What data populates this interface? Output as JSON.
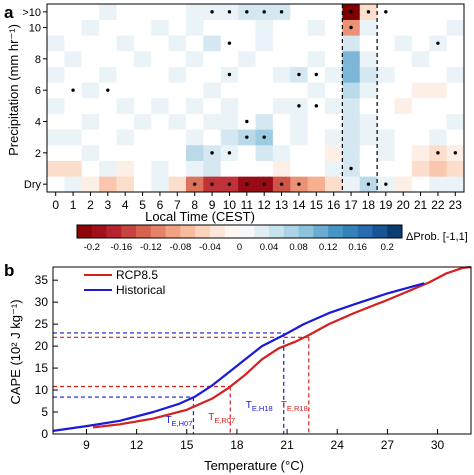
{
  "chart_data": [
    {
      "panel_label": "a",
      "type": "heatmap",
      "xlabel": "Local Time (CEST)",
      "ylabel": "Precipitation (mm hr⁻¹)",
      "x": [
        0,
        1,
        2,
        3,
        4,
        5,
        6,
        7,
        8,
        9,
        10,
        11,
        12,
        13,
        14,
        15,
        16,
        17,
        18,
        19,
        20,
        21,
        22,
        23
      ],
      "y_rows": [
        "Dry",
        "1",
        "2",
        "3",
        "4",
        "5",
        "6",
        "7",
        "8",
        "9",
        "10",
        ">10"
      ],
      "y_tick_labels": [
        {
          "row": 0,
          "label": "Dry"
        },
        {
          "row": 2,
          "label": "2"
        },
        {
          "row": 4,
          "label": "4"
        },
        {
          "row": 6,
          "label": "6"
        },
        {
          "row": 8,
          "label": "8"
        },
        {
          "row": 10,
          "label": "10"
        },
        {
          "row": 11,
          "label": ">10"
        }
      ],
      "values": [
        [
          0.0,
          0.02,
          -0.02,
          -0.06,
          -0.04,
          0.0,
          0.02,
          -0.04,
          -0.12,
          -0.16,
          -0.16,
          -0.2,
          -0.2,
          -0.14,
          -0.1,
          -0.08,
          -0.04,
          0.02,
          0.06,
          0.02,
          -0.02,
          0.0,
          0.02,
          0.02
        ],
        [
          -0.04,
          -0.04,
          0.0,
          0.02,
          -0.02,
          0.0,
          0.02,
          0.0,
          0.02,
          0.04,
          0.0,
          0.0,
          0.0,
          -0.02,
          0.0,
          0.0,
          0.02,
          0.04,
          0.0,
          0.0,
          0.0,
          -0.04,
          -0.06,
          -0.04
        ],
        [
          0.0,
          0.0,
          0.02,
          0.0,
          0.0,
          0.0,
          0.0,
          0.0,
          0.06,
          0.04,
          0.02,
          0.0,
          0.04,
          0.02,
          0.0,
          0.0,
          -0.02,
          0.04,
          0.0,
          0.02,
          0.0,
          -0.02,
          -0.04,
          -0.02
        ],
        [
          0.02,
          0.02,
          0.0,
          0.0,
          0.02,
          0.0,
          0.0,
          0.0,
          0.02,
          0.0,
          0.04,
          0.06,
          0.08,
          0.0,
          0.02,
          0.0,
          0.02,
          0.04,
          0.02,
          0.02,
          0.0,
          0.0,
          0.02,
          0.0
        ],
        [
          0.0,
          0.0,
          0.02,
          0.0,
          0.0,
          0.02,
          0.0,
          0.02,
          0.0,
          0.02,
          0.02,
          0.0,
          0.04,
          0.0,
          0.02,
          0.0,
          0.0,
          0.04,
          0.02,
          0.0,
          0.0,
          0.0,
          0.0,
          0.02
        ],
        [
          0.02,
          0.0,
          0.0,
          0.0,
          0.02,
          0.0,
          0.02,
          0.0,
          0.02,
          0.0,
          0.02,
          0.0,
          0.0,
          0.02,
          0.02,
          0.0,
          0.02,
          0.04,
          0.0,
          0.0,
          -0.02,
          0.0,
          0.0,
          0.0
        ],
        [
          0.0,
          0.0,
          0.02,
          0.0,
          0.0,
          0.0,
          0.0,
          0.0,
          0.0,
          0.02,
          0.0,
          0.0,
          0.0,
          0.0,
          0.0,
          0.02,
          0.0,
          0.06,
          0.02,
          0.0,
          0.0,
          -0.02,
          -0.02,
          0.0
        ],
        [
          0.02,
          0.0,
          0.0,
          0.02,
          0.0,
          0.0,
          0.0,
          0.02,
          0.0,
          0.0,
          0.02,
          0.0,
          0.0,
          0.02,
          0.04,
          0.0,
          0.02,
          0.1,
          0.04,
          0.02,
          0.0,
          0.0,
          0.0,
          0.02
        ],
        [
          0.0,
          0.02,
          0.0,
          0.0,
          0.0,
          0.02,
          0.0,
          0.0,
          0.02,
          0.0,
          0.0,
          0.02,
          0.0,
          0.0,
          0.0,
          0.02,
          0.0,
          0.1,
          0.02,
          0.0,
          0.0,
          0.02,
          0.0,
          0.0
        ],
        [
          0.02,
          0.0,
          0.0,
          0.0,
          0.02,
          0.0,
          0.0,
          0.02,
          0.0,
          0.04,
          0.0,
          0.0,
          0.02,
          0.0,
          0.0,
          0.0,
          0.0,
          0.04,
          0.0,
          0.0,
          0.02,
          0.0,
          0.02,
          0.0
        ],
        [
          0.0,
          0.0,
          0.02,
          0.0,
          0.0,
          0.0,
          0.02,
          0.0,
          0.02,
          0.0,
          0.0,
          0.0,
          0.02,
          0.0,
          0.0,
          0.02,
          0.0,
          -0.1,
          0.02,
          0.0,
          0.0,
          0.0,
          0.0,
          0.02
        ],
        [
          0.0,
          0.0,
          0.0,
          0.02,
          0.0,
          0.0,
          0.0,
          0.0,
          0.02,
          0.02,
          0.02,
          0.04,
          0.04,
          0.04,
          0.0,
          0.0,
          0.0,
          -0.22,
          -0.04,
          0.0,
          0.0,
          0.0,
          0.0,
          0.0
        ]
      ],
      "significant": [
        [
          8,
          0
        ],
        [
          9,
          0
        ],
        [
          10,
          0
        ],
        [
          11,
          0
        ],
        [
          12,
          0
        ],
        [
          13,
          0
        ],
        [
          14,
          0
        ],
        [
          18,
          0
        ],
        [
          19,
          0
        ],
        [
          17,
          1
        ],
        [
          9,
          2
        ],
        [
          10,
          2
        ],
        [
          22,
          2
        ],
        [
          23,
          2
        ],
        [
          11,
          3
        ],
        [
          12,
          3
        ],
        [
          11,
          4
        ],
        [
          14,
          5
        ],
        [
          15,
          5
        ],
        [
          1,
          6
        ],
        [
          3,
          6
        ],
        [
          14,
          7
        ],
        [
          15,
          7
        ],
        [
          10,
          7
        ],
        [
          10,
          9
        ],
        [
          22,
          9
        ],
        [
          9,
          11
        ],
        [
          10,
          11
        ],
        [
          11,
          11
        ],
        [
          12,
          11
        ],
        [
          13,
          11
        ],
        [
          18,
          11
        ],
        [
          19,
          11
        ],
        [
          17,
          11
        ],
        [
          17,
          10
        ]
      ],
      "dashed_lines_x": [
        17,
        19
      ],
      "colorbar": {
        "tick_labels": [
          "-0.2",
          "-0.16",
          "-0.12",
          "-0.08",
          "-0.04",
          "0",
          "0.04",
          "0.08",
          "0.12",
          "0.16",
          "0.2"
        ],
        "label": "ΔProb. [-1,1]"
      }
    },
    {
      "panel_label": "b",
      "type": "line",
      "xlabel": "Temperature (°C)",
      "ylabel": "CAPE (10² J kg⁻¹)",
      "xlim": [
        7,
        32
      ],
      "ylim": [
        0,
        38
      ],
      "x_ticks": [
        9,
        12,
        15,
        18,
        21,
        24,
        27,
        30
      ],
      "y_ticks": [
        0,
        5,
        10,
        15,
        20,
        25,
        30,
        35
      ],
      "series": [
        {
          "name": "RCP8.5",
          "color": "#d42020",
          "x": [
            9.4,
            11,
            13,
            15,
            16.5,
            17.5,
            18.5,
            19.5,
            20.5,
            21.5,
            22.3,
            23.5,
            25,
            27,
            29.5,
            30.5,
            31.5,
            32
          ],
          "y": [
            1.5,
            2.2,
            3.5,
            5.5,
            8,
            10.5,
            13.5,
            17,
            19.5,
            21,
            22.5,
            25,
            27.5,
            30.5,
            34.5,
            36.5,
            37.8,
            38
          ]
        },
        {
          "name": "Historical",
          "color": "#1a1ad8",
          "x": [
            7,
            9,
            11,
            13,
            14.5,
            15.5,
            16.5,
            17.5,
            18.5,
            19.5,
            20.8,
            22,
            23.5,
            25,
            27,
            29.2
          ],
          "y": [
            0.7,
            1.8,
            3,
            5,
            6.8,
            8.5,
            11,
            14,
            17,
            20,
            22.5,
            25,
            27.5,
            29.5,
            32,
            34.3
          ]
        }
      ],
      "reference_lines": [
        {
          "label_main": "T",
          "label_sub": "E,H07",
          "x": 15.4,
          "y": 8.4,
          "color": "#1a1ad8"
        },
        {
          "label_main": "T",
          "label_sub": "E,R07",
          "x": 17.6,
          "y": 10.8,
          "color": "#d42020"
        },
        {
          "label_main": "T",
          "label_sub": "E,H18",
          "x": 20.8,
          "y": 23.0,
          "color": "#1a1ad8"
        },
        {
          "label_main": "T",
          "label_sub": "E,R18",
          "x": 22.3,
          "y": 22.0,
          "color": "#d42020"
        }
      ]
    }
  ]
}
